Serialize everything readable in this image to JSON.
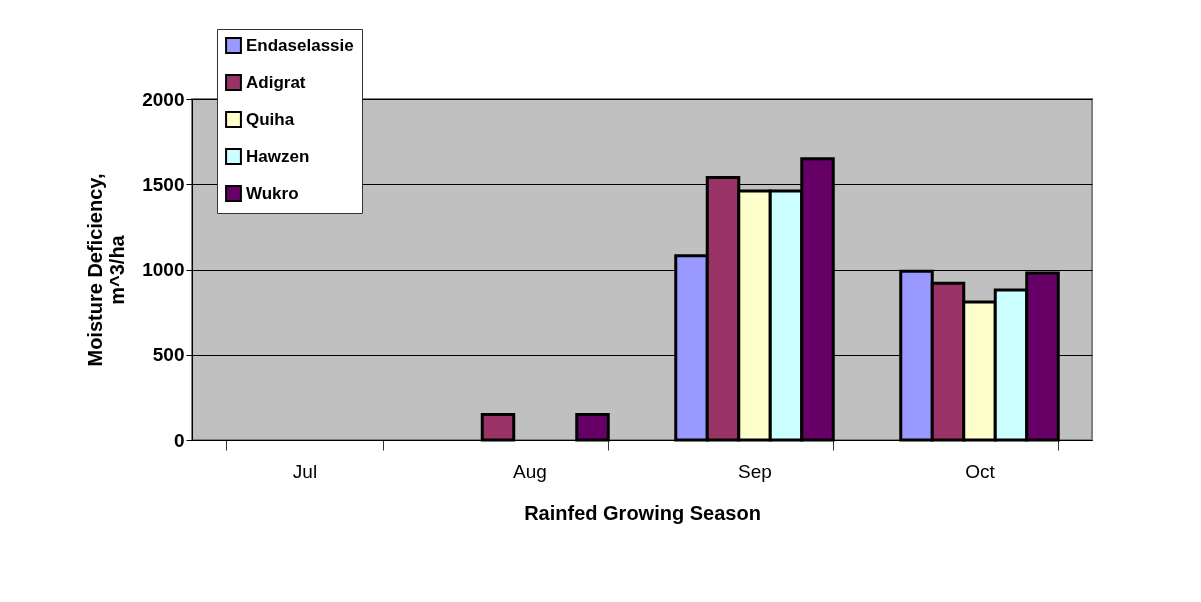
{
  "chart_data": {
    "type": "bar",
    "xlabel": "Rainfed Growing Season",
    "ylabel": "Moisture Deficiency, m^3/ha",
    "categories": [
      "Jul",
      "Aug",
      "Sep",
      "Oct"
    ],
    "series": [
      {
        "name": "Endaselassie",
        "color": "#9999ff",
        "values": [
          null,
          null,
          1080,
          990
        ]
      },
      {
        "name": "Adigrat",
        "color": "#993366",
        "values": [
          null,
          150,
          1540,
          920
        ]
      },
      {
        "name": "Quiha",
        "color": "#ffffcc",
        "values": [
          null,
          null,
          1460,
          810
        ]
      },
      {
        "name": "Hawzen",
        "color": "#ccffff",
        "values": [
          null,
          null,
          1460,
          880
        ]
      },
      {
        "name": "Wukro",
        "color": "#660066",
        "values": [
          null,
          150,
          1650,
          980
        ]
      }
    ],
    "ylim": [
      0,
      2000
    ],
    "yticks": [
      0,
      500,
      1000,
      1500,
      2000
    ],
    "grid": "y",
    "legend": "top left"
  }
}
